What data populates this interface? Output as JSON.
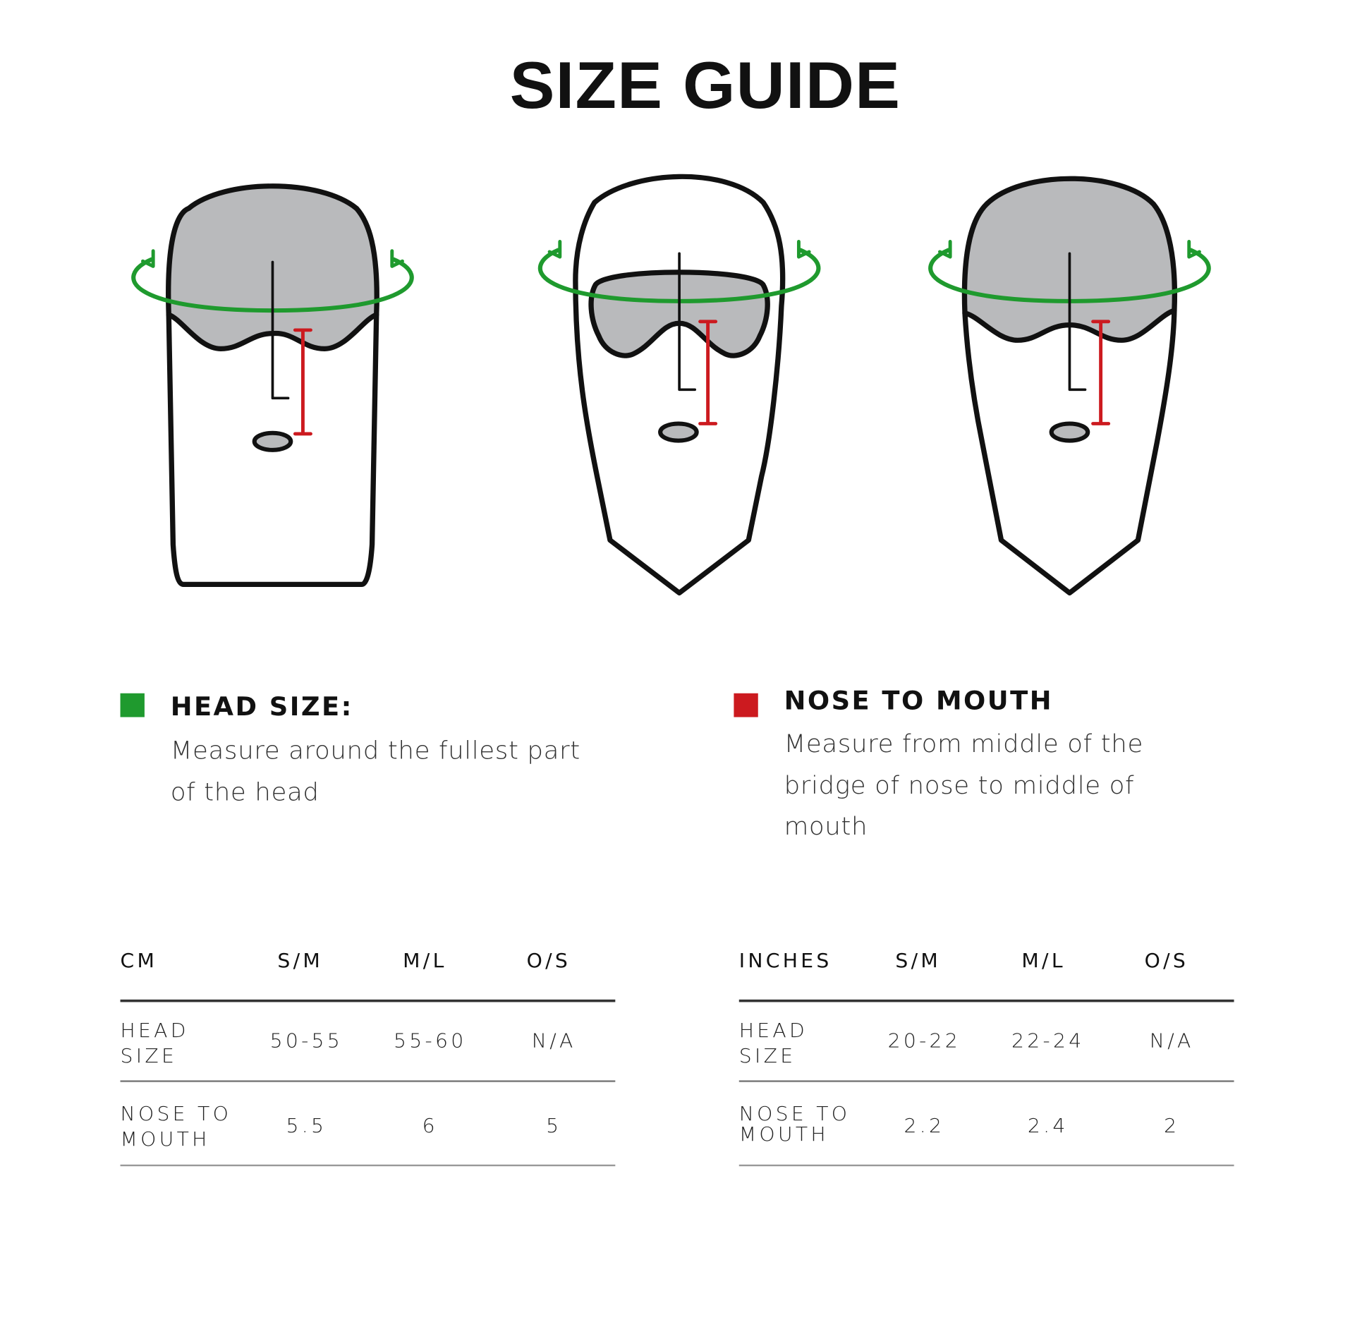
{
  "title": "SIZE GUIDE",
  "colors": {
    "head_size": "#1f9a2e",
    "nose_to_mouth": "#cc1a1f",
    "fill": "#b9babc",
    "outline": "#111111"
  },
  "legend": [
    {
      "title": "HEAD SIZE:",
      "lines": [
        "Measure around the fullest part",
        "of the head"
      ]
    },
    {
      "title": "NOSE TO MOUTH",
      "lines": [
        "Measure from middle of the",
        "bridge of nose to middle of",
        "mouth"
      ]
    }
  ],
  "tables": [
    {
      "unit": "CM",
      "columns": [
        "S/M",
        "M/L",
        "O/S"
      ],
      "rows": [
        {
          "label": [
            "HEAD",
            "SIZE"
          ],
          "values": [
            "50-55",
            "55-60",
            "N/A"
          ]
        },
        {
          "label": [
            "NOSE TO",
            "MOUTH"
          ],
          "values": [
            "5.5",
            "6",
            "5"
          ]
        }
      ]
    },
    {
      "unit": "INCHES",
      "columns": [
        "S/M",
        "M/L",
        "O/S"
      ],
      "rows": [
        {
          "label": [
            "HEAD",
            "SIZE"
          ],
          "values": [
            "20-22",
            "22-24",
            "N/A"
          ]
        },
        {
          "label": [
            "NOSE TO",
            "MOUTH"
          ],
          "values": [
            "2.2",
            "2.4",
            "2"
          ]
        }
      ]
    }
  ]
}
